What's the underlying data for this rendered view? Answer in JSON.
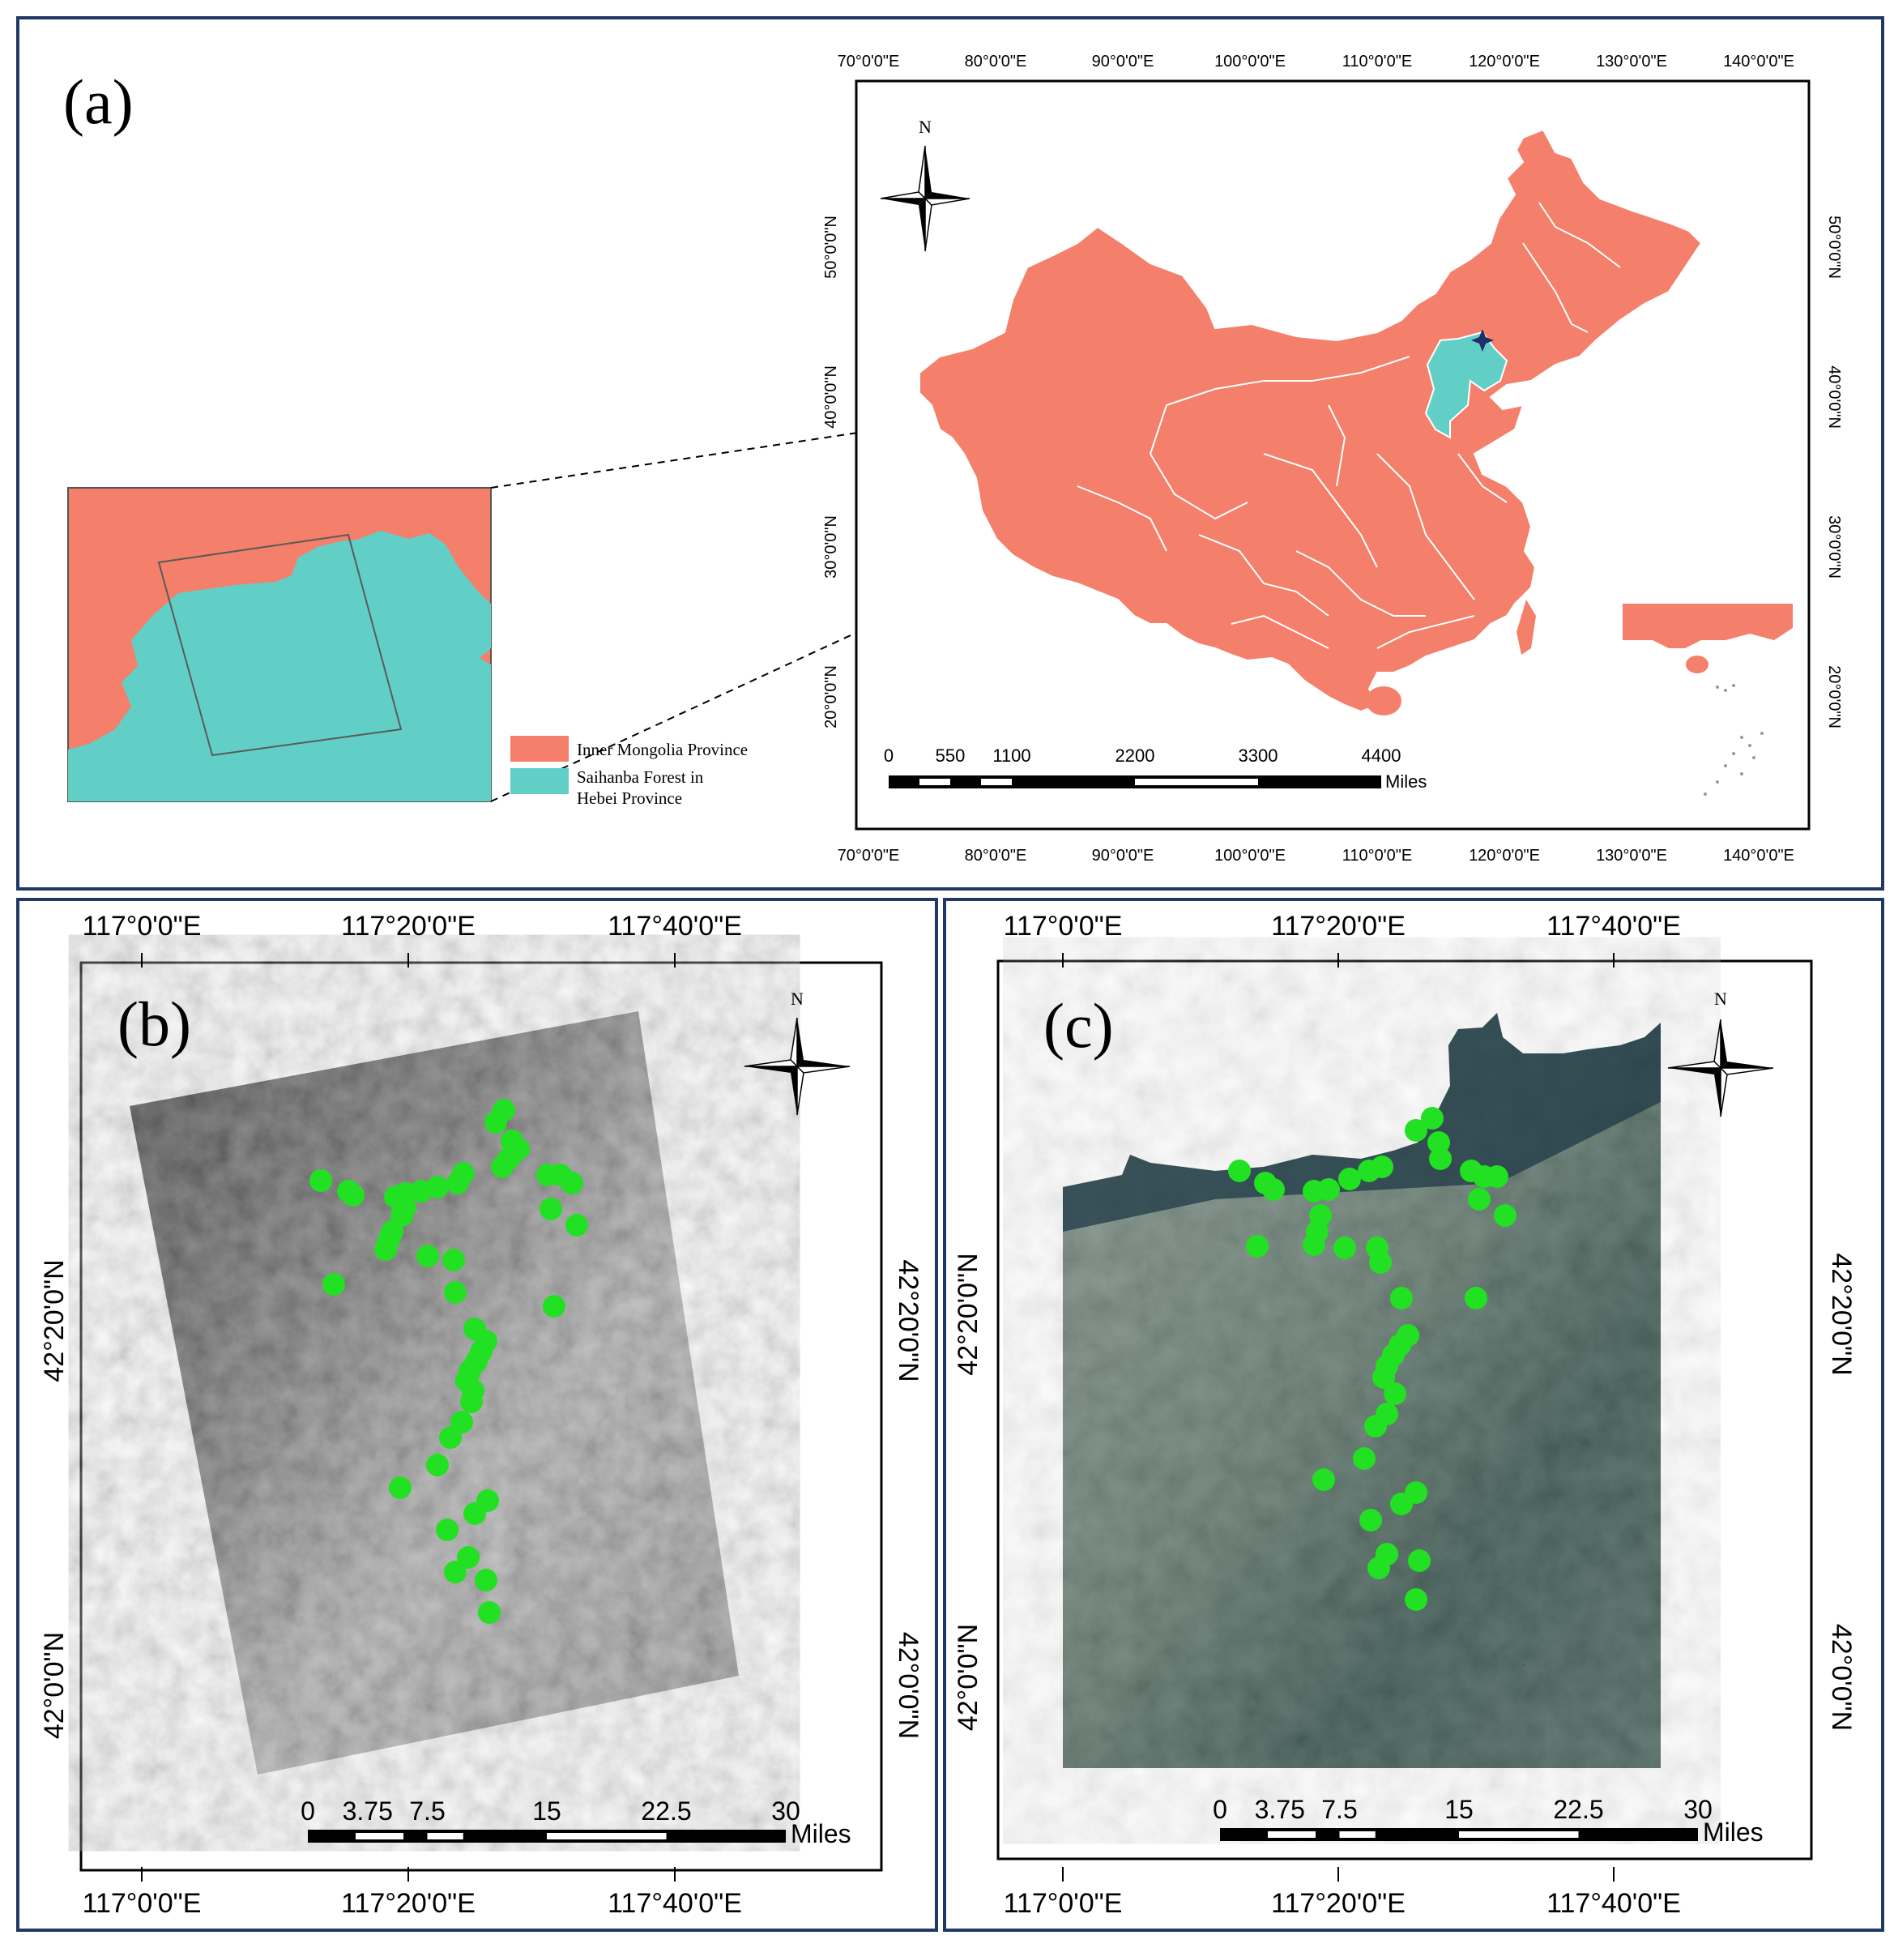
{
  "panel_a": {
    "label": "(a)",
    "lon_ticks": [
      "70°0'0\"E",
      "80°0'0\"E",
      "90°0'0\"E",
      "100°0'0\"E",
      "110°0'0\"E",
      "120°0'0\"E",
      "130°0'0\"E",
      "140°0'0\"E"
    ],
    "lat_ticks": [
      "20°0'0\"N",
      "30°0'0\"N",
      "40°0'0\"N",
      "50°0'0\"N"
    ],
    "north": "N",
    "scale_labels": [
      "0",
      "550",
      "1100",
      "2200",
      "3300",
      "4400"
    ],
    "scale_unit": "Miles",
    "legend": [
      {
        "label": "Inner Mongolia Province",
        "color": "#f47f6b"
      },
      {
        "label": "Saihanba Forest in",
        "label2": "Hebei Province",
        "color": "#62cfc7"
      }
    ],
    "colors": {
      "china": "#f47f6b",
      "hebei": "#62cfc7",
      "border": "#ffffff",
      "frame": "#1f3864"
    }
  },
  "panel_b": {
    "label": "(b)",
    "lon_ticks": [
      "117°0'0\"E",
      "117°20'0\"E",
      "117°40'0\"E"
    ],
    "lat_ticks": [
      "42°20'0\"N",
      "42°0'0\"N"
    ],
    "north": "N",
    "scale_labels": [
      "0",
      "3.75",
      "7.5",
      "15",
      "22.5",
      "30"
    ],
    "scale_unit": "Miles",
    "point_color": "#22e022"
  },
  "panel_c": {
    "label": "(c)",
    "lon_ticks": [
      "117°0'0\"E",
      "117°20'0\"E",
      "117°40'0\"E"
    ],
    "lat_ticks": [
      "42°20'0\"N",
      "42°0'0\"N"
    ],
    "north": "N",
    "scale_labels": [
      "0",
      "3.75",
      "7.5",
      "15",
      "22.5",
      "30"
    ],
    "scale_unit": "Miles",
    "point_color": "#22e022"
  }
}
